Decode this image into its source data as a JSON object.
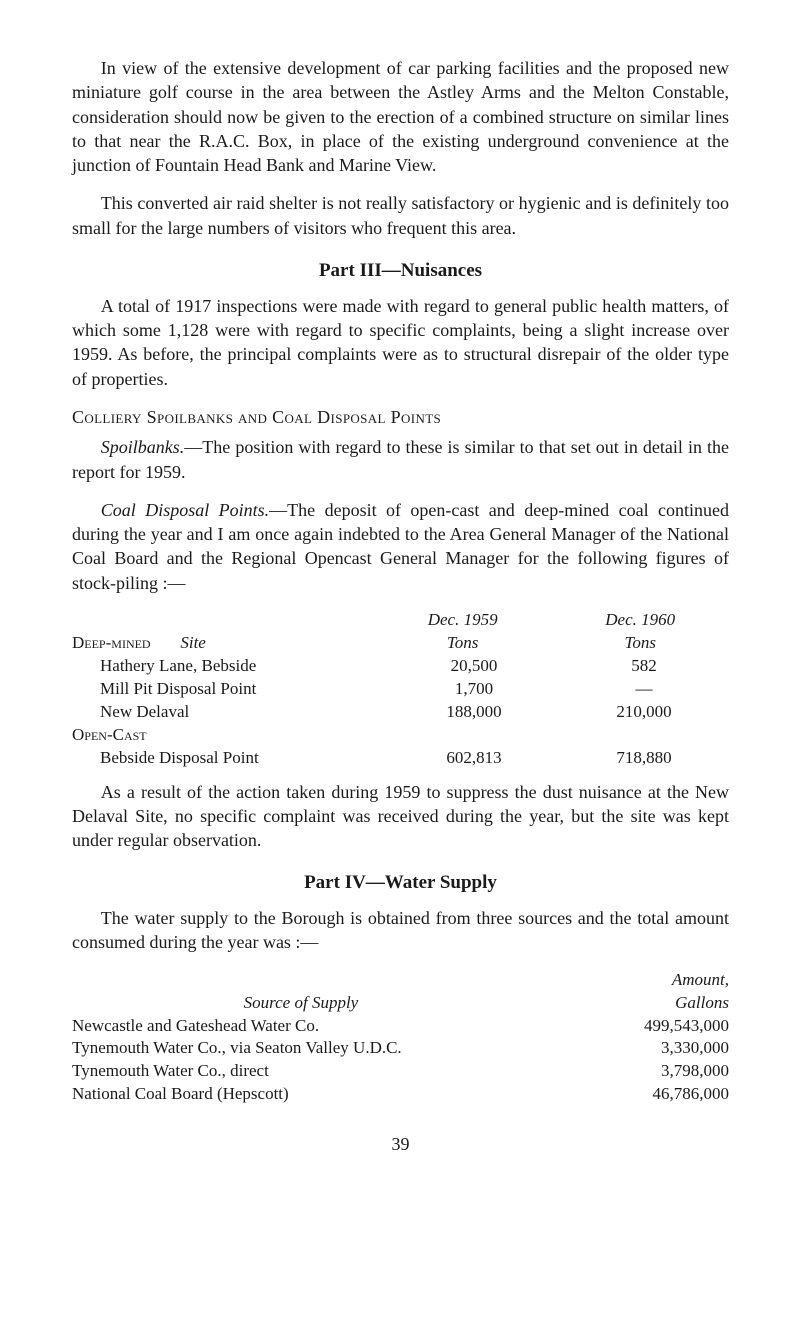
{
  "p1": "In view of the extensive development of car parking facilities and the proposed new miniature golf course in the area between the Astley Arms and the Melton Constable, consideration should now be given to the erection of a combined structure on similar lines to that near the R.A.C. Box, in place of the existing underground convenience at the junction of Fountain Head Bank and Marine View.",
  "p2": "This converted air raid shelter is not really satisfactory or hygienic and is definitely too small for the large numbers of visitors who frequent this area.",
  "h1": "Part III—Nuisances",
  "p3": "A total of 1917 inspections were made with regard to general public health matters, of which some 1,128 were with regard to specific complaints, being a slight increase over 1959. As before, the principal complaints were as to structural disrepair of the older type of properties.",
  "sub1": "Colliery Spoilbanks and Coal Disposal Points",
  "p4a": "Spoilbanks.",
  "p4b": "—The position with regard to these is similar to that set out in detail in the report for 1959.",
  "p5a": "Coal Disposal Points.",
  "p5b": "—The deposit of open-cast and deep-mined coal continued during the year and I am once again indebted to the Area General Manager of the National Coal Board and the Regional Opencast General Manager for the following figures of stock-piling :—",
  "coal": {
    "col1_hdr1": "Deep-mined",
    "col1_hdr_site": "Site",
    "col2_hdr1": "Dec. 1959",
    "col2_hdr2": "Tons",
    "col3_hdr1": "Dec. 1960",
    "col3_hdr2": "Tons",
    "r1": {
      "label": "Hathery Lane, Bebside",
      "v1959": "20,500",
      "v1960": "582"
    },
    "r2": {
      "label": "Mill Pit Disposal Point",
      "v1959": "1,700",
      "v1960": "—"
    },
    "r3": {
      "label": "New Delaval",
      "v1959": "188,000",
      "v1960": "210,000"
    },
    "opencast": "Open-Cast",
    "r4": {
      "label": "Bebside Disposal Point",
      "v1959": "602,813",
      "v1960": "718,880"
    }
  },
  "p6": "As a result of the action taken during 1959 to suppress the dust nuisance at the New Delaval Site, no specific complaint was received during the year, but the site was kept under regular observation.",
  "h2": "Part IV—Water Supply",
  "p7": "The water supply to the Borough is obtained from three sources and the total amount consumed during the year was :—",
  "water": {
    "col1_hdr": "Source of Supply",
    "col2_hdr1": "Amount,",
    "col2_hdr2": "Gallons",
    "r1": {
      "label": "Newcastle and Gateshead Water Co.",
      "val": "499,543,000"
    },
    "r2": {
      "label": "Tynemouth Water Co., via Seaton Valley U.D.C.",
      "val": "3,330,000"
    },
    "r3": {
      "label": "Tynemouth Water Co., direct",
      "val": "3,798,000"
    },
    "r4": {
      "label": "National Coal Board (Hepscott)",
      "val": "46,786,000"
    }
  },
  "pagenum": "39"
}
